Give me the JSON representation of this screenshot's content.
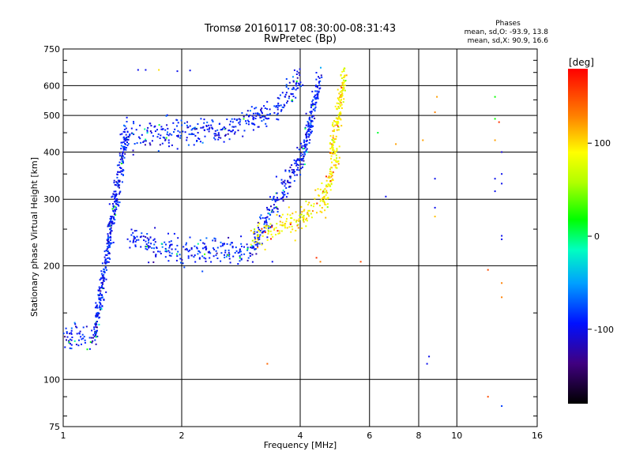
{
  "chart_data": {
    "type": "scatter",
    "title": "Tromsø 20160117 08:30:00-08:31:43",
    "subtitle": "RwPretec (Bp)",
    "xlabel": "Frequency [MHz]",
    "ylabel": "Stationary phase Virtual Height [km]",
    "x_scale": "log2",
    "y_scale": "log",
    "xlim": [
      1,
      16
    ],
    "ylim": [
      75,
      750
    ],
    "x_ticks": [
      1,
      2,
      4,
      6,
      8,
      10,
      16
    ],
    "y_ticks": [
      75,
      100,
      200,
      300,
      400,
      500,
      600,
      750
    ],
    "grid": true,
    "phases_box": {
      "heading": "Phases",
      "line_o": "mean, sd,O: -93.9, 13.8",
      "line_x": "mean, sd,X:  90.9, 16.6"
    },
    "colorbar": {
      "label": "[deg]",
      "range": [
        -180,
        180
      ],
      "ticks": [
        100,
        0,
        -100
      ]
    },
    "series": [
      {
        "mode": "O",
        "phase_mean": -93.9,
        "phase_sd": 13.8,
        "segments": [
          {
            "f": [
              1.0,
              1.2
            ],
            "h": [
              130,
              130
            ]
          },
          {
            "f": [
              1.2,
              1.45
            ],
            "h": [
              130,
              460
            ]
          },
          {
            "f": [
              1.45,
              2.0,
              3.0,
              4.1
            ],
            "h": [
              235,
              215,
              222,
              400
            ]
          },
          {
            "f": [
              4.1,
              4.5
            ],
            "h": [
              400,
              640
            ]
          },
          {
            "f": [
              1.45,
              2.5,
              3.5,
              4.0
            ],
            "h": [
              445,
              455,
              520,
              620
            ]
          }
        ]
      },
      {
        "mode": "X",
        "phase_mean": 90.9,
        "phase_sd": 16.6,
        "segments": [
          {
            "f": [
              3.0,
              4.0,
              4.6,
              5.0
            ],
            "h": [
              240,
              265,
              300,
              400
            ]
          },
          {
            "f": [
              4.8,
              5.2
            ],
            "h": [
              400,
              650
            ]
          }
        ]
      },
      {
        "mode": "scattered",
        "points": [
          {
            "x": 1.55,
            "y": 660,
            "phase": -100
          },
          {
            "x": 1.62,
            "y": 660,
            "phase": -100
          },
          {
            "x": 1.75,
            "y": 660,
            "phase": 100
          },
          {
            "x": 1.95,
            "y": 655,
            "phase": -100
          },
          {
            "x": 2.1,
            "y": 658,
            "phase": -100
          },
          {
            "x": 3.3,
            "y": 110,
            "phase": 140
          },
          {
            "x": 3.4,
            "y": 205,
            "phase": -100
          },
          {
            "x": 4.4,
            "y": 210,
            "phase": 160
          },
          {
            "x": 4.5,
            "y": 205,
            "phase": 130
          },
          {
            "x": 5.7,
            "y": 205,
            "phase": 150
          },
          {
            "x": 6.3,
            "y": 450,
            "phase": 10
          },
          {
            "x": 6.6,
            "y": 305,
            "phase": -100
          },
          {
            "x": 7.0,
            "y": 420,
            "phase": 120
          },
          {
            "x": 8.2,
            "y": 430,
            "phase": 120
          },
          {
            "x": 8.4,
            "y": 110,
            "phase": -100
          },
          {
            "x": 8.5,
            "y": 115,
            "phase": -100
          },
          {
            "x": 8.8,
            "y": 340,
            "phase": -100
          },
          {
            "x": 8.8,
            "y": 285,
            "phase": -100
          },
          {
            "x": 8.8,
            "y": 270,
            "phase": 110
          },
          {
            "x": 8.9,
            "y": 560,
            "phase": 120
          },
          {
            "x": 8.8,
            "y": 510,
            "phase": 130
          },
          {
            "x": 12.0,
            "y": 90,
            "phase": 150
          },
          {
            "x": 12.0,
            "y": 195,
            "phase": 150
          },
          {
            "x": 12.5,
            "y": 560,
            "phase": 20
          },
          {
            "x": 12.5,
            "y": 490,
            "phase": 20
          },
          {
            "x": 12.5,
            "y": 430,
            "phase": 120
          },
          {
            "x": 12.5,
            "y": 340,
            "phase": -100
          },
          {
            "x": 12.5,
            "y": 315,
            "phase": -100
          },
          {
            "x": 13.0,
            "y": 350,
            "phase": -100
          },
          {
            "x": 13.0,
            "y": 400,
            "phase": -110
          },
          {
            "x": 13.0,
            "y": 330,
            "phase": -100
          },
          {
            "x": 13.0,
            "y": 240,
            "phase": -100
          },
          {
            "x": 13.0,
            "y": 235,
            "phase": -100
          },
          {
            "x": 13.0,
            "y": 180,
            "phase": 130
          },
          {
            "x": 13.0,
            "y": 165,
            "phase": 130
          },
          {
            "x": 13.0,
            "y": 85,
            "phase": -80
          },
          {
            "x": 12.8,
            "y": 480,
            "phase": 160
          }
        ]
      }
    ]
  }
}
